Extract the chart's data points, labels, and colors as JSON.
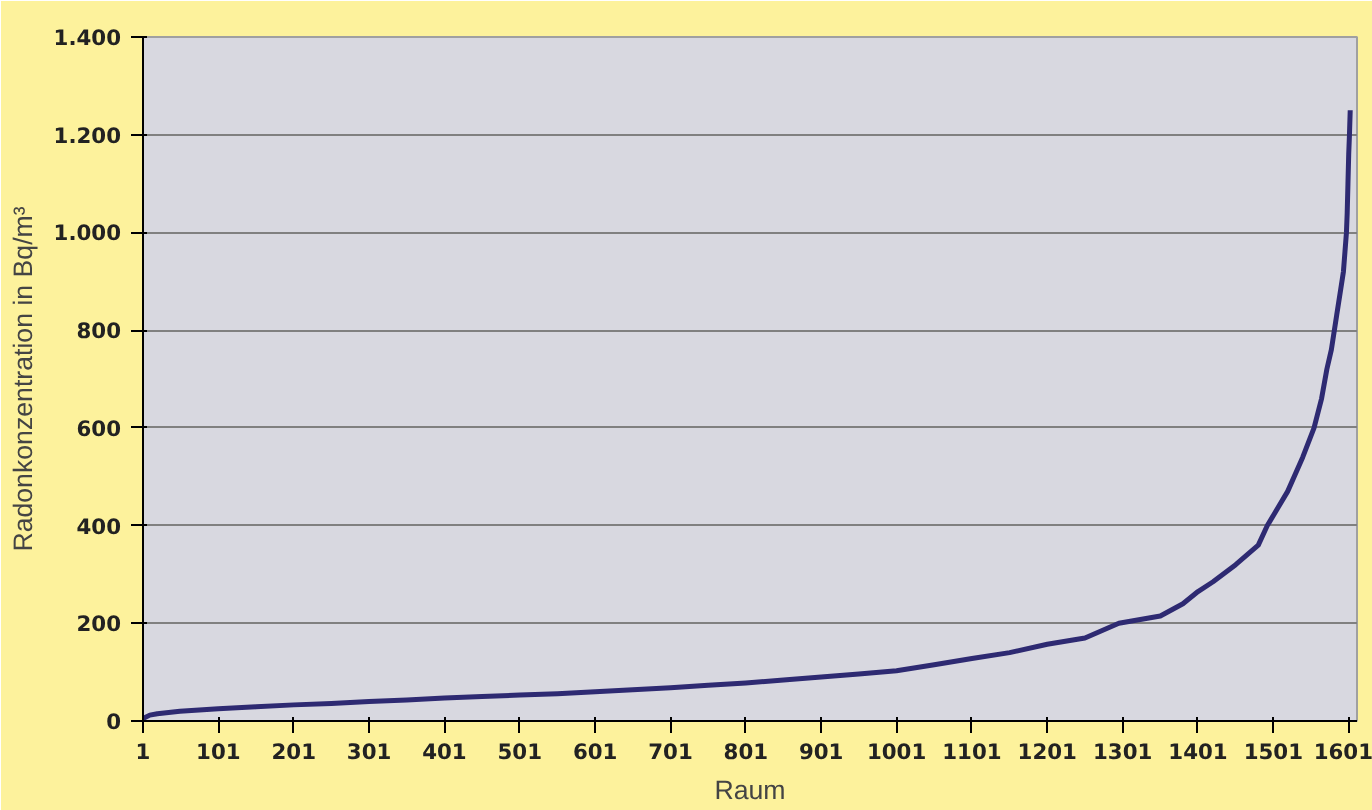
{
  "chart_data": {
    "type": "line",
    "xlabel": "Raum",
    "ylabel": "Radonkonzentration in Bq/m³",
    "x": [
      1,
      10,
      20,
      50,
      101,
      151,
      201,
      251,
      301,
      351,
      401,
      451,
      501,
      551,
      601,
      651,
      701,
      751,
      801,
      851,
      901,
      951,
      1001,
      1051,
      1101,
      1151,
      1201,
      1251,
      1296,
      1351,
      1381,
      1401,
      1421,
      1451,
      1481,
      1493,
      1520,
      1540,
      1555,
      1565,
      1572,
      1578,
      1585,
      1590,
      1594,
      1596,
      1598,
      1599,
      1600,
      1601,
      1602,
      1603
    ],
    "series": [
      {
        "color": "#2e2a72",
        "values": [
          5,
          12,
          15,
          20,
          25,
          29,
          33,
          36,
          40,
          43,
          47,
          50,
          53,
          56,
          60,
          64,
          68,
          73,
          78,
          84,
          90,
          96,
          103,
          115,
          128,
          140,
          157,
          170,
          200,
          215,
          240,
          265,
          285,
          320,
          360,
          400,
          470,
          540,
          600,
          660,
          720,
          760,
          830,
          880,
          920,
          960,
          1000,
          1040,
          1100,
          1160,
          1200,
          1250
        ]
      }
    ],
    "xlim": [
      1,
      1612
    ],
    "ylim": [
      0,
      1400
    ],
    "xticks": [
      1,
      101,
      201,
      301,
      401,
      501,
      601,
      701,
      801,
      901,
      1001,
      1101,
      1201,
      1301,
      1401,
      1501,
      1601
    ],
    "yticks": [
      0,
      200,
      400,
      600,
      800,
      {
        "value": 1000,
        "label": "1.000"
      },
      {
        "value": 1200,
        "label": "1.200"
      },
      {
        "value": 1400,
        "label": "1.400"
      }
    ],
    "grid": "y",
    "line_style": "solid"
  }
}
